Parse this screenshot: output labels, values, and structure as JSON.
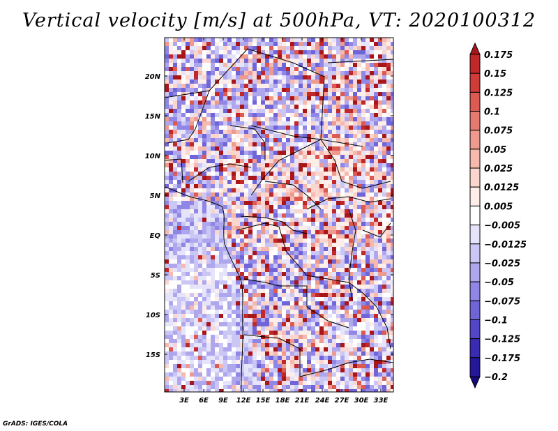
{
  "title": "Vertical velocity [m/s] at 500hPa, VT: 2020100312",
  "credit": "GrADS: IGES/COLA",
  "lat_labels": [
    "20N",
    "15N",
    "10N",
    "5N",
    "EQ",
    "5S",
    "10S",
    "15S"
  ],
  "lon_labels": [
    "3E",
    "6E",
    "9E",
    "12E",
    "15E",
    "18E",
    "21E",
    "24E",
    "27E",
    "30E",
    "33E"
  ],
  "colorbar": {
    "labels": [
      "0.175",
      "0.15",
      "0.125",
      "0.1",
      "0.075",
      "0.05",
      "0.025",
      "0.0125",
      "0.005",
      "−0.005",
      "−0.0125",
      "−0.025",
      "−0.05",
      "−0.075",
      "−0.1",
      "−0.125",
      "−0.175",
      "−0.2"
    ],
    "colors": [
      "#a8161a",
      "#c0282a",
      "#d03c38",
      "#dc5a52",
      "#e67a70",
      "#ee9a8e",
      "#f5b9ae",
      "#fad6ce",
      "#fdeee9",
      "#ffffff",
      "#e6e4fb",
      "#cbc7f5",
      "#aea7ee",
      "#8f86e5",
      "#6f64d8",
      "#5446c8",
      "#3a2bb3",
      "#24179a",
      "#140a7a"
    ]
  }
}
